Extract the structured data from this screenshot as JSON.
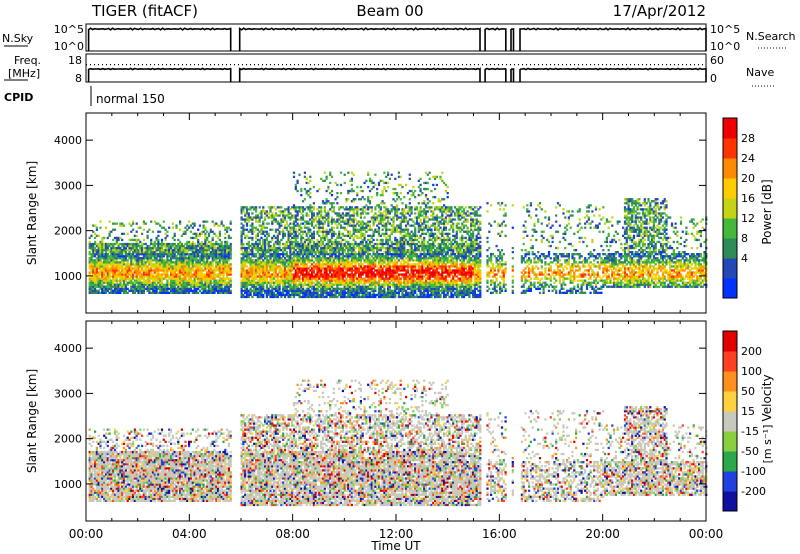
{
  "header": {
    "radar": "TIGER (fitACF)",
    "beam": "Beam 00",
    "date": "17/Apr/2012"
  },
  "colors": {
    "frame": "#000000",
    "background": "#ffffff"
  },
  "chart_data": [
    {
      "type": "line",
      "panel": "noise",
      "left_label": "N.Sky",
      "right_label": "N.Search",
      "left_ticks": [
        "10^5",
        "10^0"
      ],
      "right_ticks": [
        "10^5",
        "10^0"
      ],
      "x_range_hours": [
        0,
        24
      ],
      "series": [
        {
          "name": "N.Sky",
          "style": "solid",
          "segments": [
            [
              0.1,
              5.6
            ],
            [
              5.95,
              15.25
            ],
            [
              15.45,
              16.25
            ],
            [
              16.45,
              16.55
            ],
            [
              16.8,
              24
            ]
          ]
        },
        {
          "name": "N.Search",
          "style": "dotted",
          "segments": []
        }
      ]
    },
    {
      "type": "line",
      "panel": "frequency",
      "left_label": "Freq.",
      "left_unit": "[MHz]",
      "right_label": "Nave",
      "left_ticks": [
        "18",
        "8"
      ],
      "right_ticks": [
        "60",
        "0"
      ],
      "series": [
        {
          "name": "Freq.",
          "style": "solid",
          "segments": [
            [
              0.1,
              5.6
            ],
            [
              5.95,
              15.25
            ],
            [
              15.45,
              16.25
            ],
            [
              16.45,
              16.55
            ],
            [
              16.8,
              24
            ]
          ]
        },
        {
          "name": "Nave",
          "style": "dotted",
          "value_fraction": 0.62
        }
      ]
    },
    {
      "type": "text",
      "panel": "cpid",
      "label": "CPID",
      "value": "normal 150"
    },
    {
      "type": "heatmap",
      "panel": "power",
      "ylabel": "Slant Range [km]",
      "yticks": [
        1000,
        2000,
        3000,
        4000
      ],
      "ylim": [
        180,
        4600
      ],
      "xlim": [
        0,
        24
      ],
      "colorbar": {
        "label": "Power [dB]",
        "ticks": [
          "4",
          "8",
          "12",
          "16",
          "20",
          "24",
          "28"
        ],
        "colors": [
          "#0033ff",
          "#2448b8",
          "#2e8b57",
          "#44b83a",
          "#c4d414",
          "#ffcc00",
          "#ff8a00",
          "#ff3300",
          "#ee0000"
        ]
      },
      "seed": 1337
    },
    {
      "type": "heatmap",
      "panel": "velocity",
      "ylabel": "Slant Range [km]",
      "yticks": [
        1000,
        2000,
        3000,
        4000
      ],
      "ylim": [
        180,
        4600
      ],
      "xlim": [
        0,
        24
      ],
      "xticks": [
        "00:00",
        "04:00",
        "08:00",
        "12:00",
        "16:00",
        "20:00",
        "00:00"
      ],
      "xlabel": "Time UT",
      "colorbar": {
        "label": "Velocity",
        "unit": "[m s⁻¹]",
        "ticks": [
          "200",
          "100",
          "50",
          "15",
          "-15",
          "-50",
          "-100",
          "-200"
        ],
        "colors": [
          "#1010a0",
          "#2040e0",
          "#2aa84a",
          "#88d040",
          "#c8c8bc",
          "#ffd040",
          "#ff9020",
          "#ff4020",
          "#e00000"
        ]
      },
      "seed": 4242
    }
  ]
}
